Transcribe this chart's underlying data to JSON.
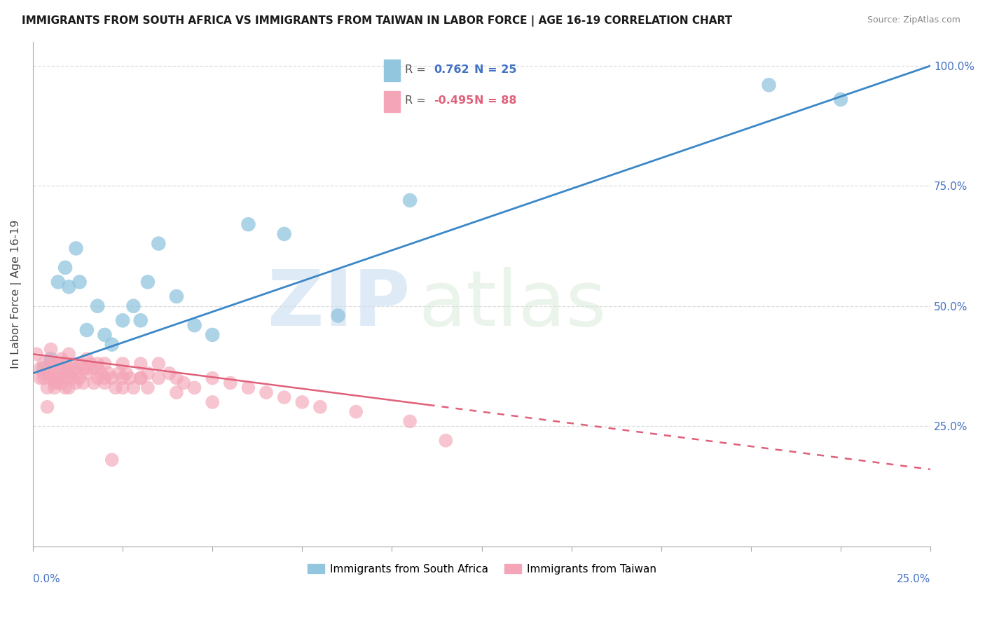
{
  "title": "IMMIGRANTS FROM SOUTH AFRICA VS IMMIGRANTS FROM TAIWAN IN LABOR FORCE | AGE 16-19 CORRELATION CHART",
  "source": "Source: ZipAtlas.com",
  "ylabel": "In Labor Force | Age 16-19",
  "blue_color": "#92c5de",
  "pink_color": "#f4a6b8",
  "blue_line_color": "#3a87c8",
  "pink_line_color": "#e0607a",
  "watermark_zip": "ZIP",
  "watermark_atlas": "atlas",
  "blue_scatter_x": [
    0.3,
    0.5,
    0.7,
    0.9,
    1.0,
    1.2,
    1.3,
    1.5,
    1.8,
    2.0,
    2.2,
    2.5,
    2.8,
    3.0,
    3.2,
    3.5,
    4.0,
    4.5,
    5.0,
    6.0,
    7.0,
    8.5,
    10.5,
    20.5,
    22.5
  ],
  "blue_scatter_y": [
    37,
    39,
    55,
    58,
    54,
    62,
    55,
    45,
    50,
    44,
    42,
    47,
    50,
    47,
    55,
    63,
    52,
    46,
    44,
    67,
    65,
    48,
    72,
    96,
    93
  ],
  "pink_scatter_x": [
    0.1,
    0.2,
    0.2,
    0.3,
    0.3,
    0.4,
    0.4,
    0.5,
    0.5,
    0.5,
    0.6,
    0.6,
    0.6,
    0.7,
    0.7,
    0.7,
    0.8,
    0.8,
    0.8,
    0.9,
    0.9,
    0.9,
    1.0,
    1.0,
    1.0,
    1.0,
    1.1,
    1.1,
    1.2,
    1.2,
    1.3,
    1.3,
    1.4,
    1.4,
    1.5,
    1.5,
    1.6,
    1.7,
    1.7,
    1.8,
    1.8,
    1.9,
    2.0,
    2.0,
    2.1,
    2.2,
    2.3,
    2.4,
    2.5,
    2.5,
    2.6,
    2.7,
    2.8,
    3.0,
    3.0,
    3.2,
    3.2,
    3.5,
    3.5,
    3.8,
    4.0,
    4.2,
    4.5,
    5.0,
    5.5,
    6.0,
    6.5,
    7.0,
    7.5,
    8.0,
    9.0,
    10.5,
    11.5,
    0.3,
    0.5,
    0.7,
    1.0,
    1.5,
    2.0,
    2.5,
    3.0,
    4.0,
    5.0,
    0.4,
    0.6,
    1.2,
    1.8,
    2.2
  ],
  "pink_scatter_y": [
    40,
    37,
    35,
    38,
    35,
    36,
    33,
    41,
    37,
    35,
    38,
    35,
    33,
    38,
    36,
    34,
    39,
    37,
    34,
    38,
    36,
    33,
    40,
    37,
    35,
    33,
    38,
    35,
    37,
    34,
    38,
    35,
    37,
    34,
    39,
    36,
    38,
    37,
    34,
    38,
    35,
    36,
    38,
    35,
    36,
    35,
    33,
    36,
    38,
    35,
    36,
    35,
    33,
    38,
    35,
    36,
    33,
    38,
    35,
    36,
    35,
    34,
    33,
    35,
    34,
    33,
    32,
    31,
    30,
    29,
    28,
    26,
    22,
    36,
    38,
    35,
    36,
    37,
    34,
    33,
    35,
    32,
    30,
    29,
    34,
    36,
    37,
    18
  ],
  "xlim": [
    0,
    25
  ],
  "ylim": [
    0,
    105
  ],
  "blue_trend_x0": 0,
  "blue_trend_y0": 36,
  "blue_trend_x1": 25,
  "blue_trend_y1": 100,
  "pink_trend_x0": 0,
  "pink_trend_y0": 40,
  "pink_trend_x1": 25,
  "pink_trend_y1": 16,
  "pink_solid_end_x": 11,
  "ytick_vals": [
    0,
    25,
    50,
    75,
    100
  ],
  "ytick_labels_right": [
    "",
    "25.0%",
    "50.0%",
    "75.0%",
    "100.0%"
  ],
  "grid_color": "#dddddd",
  "axis_color": "#aaaaaa",
  "right_label_color": "#4472c4",
  "bottom_label_color": "#4472c4",
  "legend_blue_r_label": "R = ",
  "legend_blue_r_val": "0.762",
  "legend_blue_n": "N = 25",
  "legend_pink_r_label": "R = ",
  "legend_pink_r_val": "-0.495",
  "legend_pink_n": "N = 88",
  "legend_r_color": "#555555",
  "legend_blue_val_color": "#4472c4",
  "legend_pink_val_color": "#e0607a",
  "bottom_legend_blue": "Immigrants from South Africa",
  "bottom_legend_pink": "Immigrants from Taiwan"
}
